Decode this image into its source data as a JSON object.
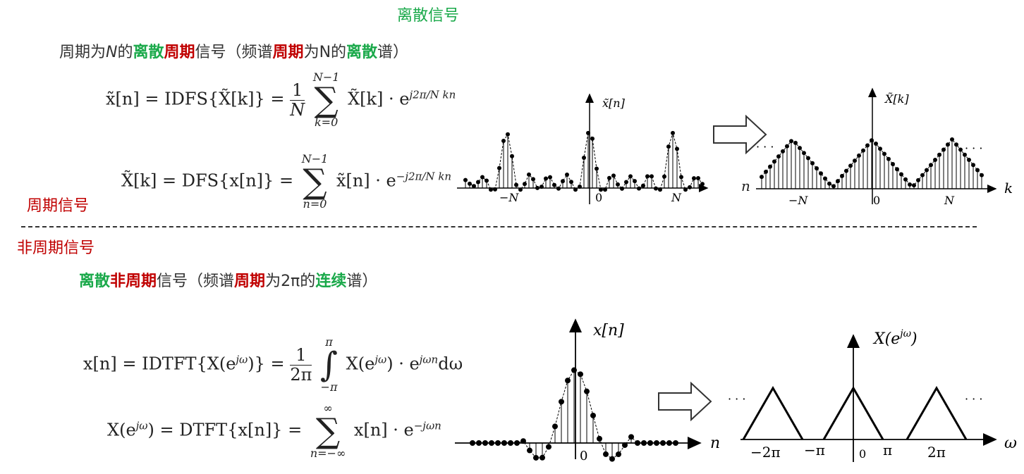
{
  "top_title": "离散信号",
  "periodic_heading": {
    "prefix": "周期为",
    "N": "N",
    "de": "的",
    "disc": "离散",
    "period": "周期",
    "signal": "信号（频谱",
    "period2": "周期",
    "forN": "为N的",
    "disc2": "离散",
    "suffix": "谱）"
  },
  "eq1": {
    "lhs": "x̃[n] = IDFS{X̃[k]} =",
    "frac_num": "1",
    "frac_den": "N",
    "sum_top": "N−1",
    "sum_bot": "k=0",
    "rhs": "X̃[k] · e",
    "exp": "j2π/N kn"
  },
  "eq2": {
    "lhs": "X̃[k] = DFS{x[n]} =",
    "sum_top": "N−1",
    "sum_bot": "n=0",
    "rhs": "x̃[n] · e",
    "exp": "−j2π/N kn"
  },
  "side_periodic": "周期信号",
  "side_aperiodic": "非周期信号",
  "aperiodic_heading": {
    "disc": "离散",
    "nonperiod": "非周期",
    "signal": "信号（频谱",
    "period": "周期",
    "for2pi": "为2π的",
    "cont": "连续",
    "suffix": "谱）"
  },
  "eq3": {
    "lhs": "x[n] = IDTFT{X(e",
    "lhs_exp": "jω",
    "lhs2": ")} =",
    "frac_num": "1",
    "frac_den": "2π",
    "int_top": "π",
    "int_bot": "−π",
    "rhs": "X(e",
    "rhs_exp": "jω",
    "rhs2": ") · e",
    "rhs_exp2": "jωn",
    "rhs3": "dω"
  },
  "eq4": {
    "lhs": "X(e",
    "lhs_exp": "jω",
    "lhs2": ") = DTFT{x[n]} =",
    "sum_top": "∞",
    "sum_bot": "n=−∞",
    "rhs": "x[n] · e",
    "rhs_exp": "−jωn"
  },
  "plot1": {
    "ylabel": "x̃[n]",
    "xlabel": "n",
    "ticks": [
      "−N",
      "0",
      "N"
    ]
  },
  "plot2": {
    "ylabel": "X̃[k]",
    "xlabel": "k",
    "ticks": [
      "−N",
      "0",
      "N"
    ],
    "dots": "· · ·"
  },
  "plot3": {
    "ylabel": "x[n]",
    "xlabel": "n",
    "ticks": [
      "0"
    ]
  },
  "plot4": {
    "ylabel": "X(e^{jω})",
    "ylabel_base": "X(e",
    "ylabel_exp": "jω",
    "ylabel_close": ")",
    "xlabel": "ω",
    "ticks": [
      "−2π",
      "−π",
      "0",
      "π",
      "2π"
    ],
    "dots": "· · ·"
  },
  "colors": {
    "green": "#1aa94a",
    "red": "#c00000"
  }
}
